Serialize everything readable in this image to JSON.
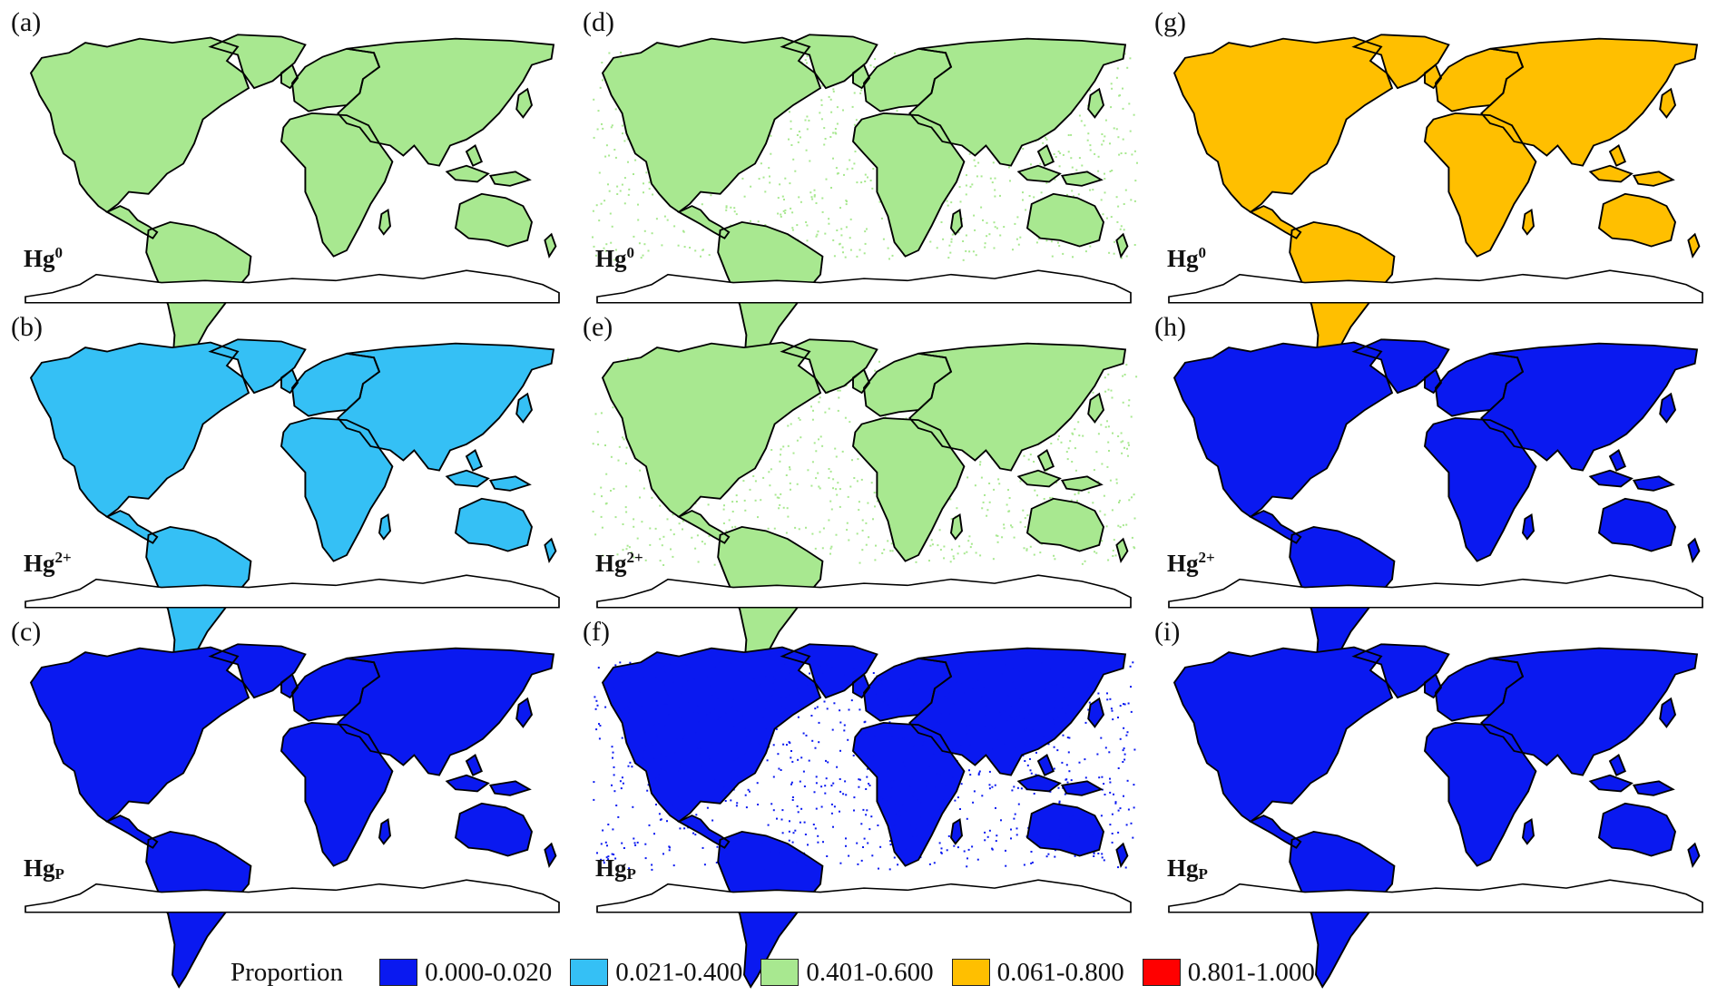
{
  "panels": [
    {
      "label": "(a)",
      "species": "Hg",
      "sup": "0",
      "land": "#a8e890",
      "patches": [
        {
          "region": "north-america",
          "color": "#ff0000"
        },
        {
          "region": "africa",
          "color": "#ffbf00"
        },
        {
          "region": "australia",
          "color": "#ffbf00"
        },
        {
          "region": "south-america",
          "color": "#a8e890"
        },
        {
          "region": "scattered",
          "color": "#ff0000"
        }
      ]
    },
    {
      "label": "(b)",
      "species": "Hg",
      "sup": "2+",
      "land": "#35c0f5",
      "patches": [
        {
          "region": "north-america",
          "color": "#0a19f0"
        },
        {
          "region": "eurasia-north",
          "color": "#a8e890"
        },
        {
          "region": "scattered",
          "color": "#0a19f0"
        }
      ]
    },
    {
      "label": "(c)",
      "species": "Hg",
      "sup": "P",
      "land": "#0a19f0",
      "patches": []
    },
    {
      "label": "(d)",
      "species": "Hg",
      "sup": "0",
      "land": "#a8e890",
      "patches": [
        {
          "region": "ocean-dots",
          "color": "#a8e890"
        },
        {
          "region": "south-america",
          "color": "#35c0f5"
        },
        {
          "region": "scattered",
          "color": "#35c0f5"
        },
        {
          "region": "central-africa",
          "color": "#ff0000"
        }
      ]
    },
    {
      "label": "(e)",
      "species": "Hg",
      "sup": "2+",
      "land": "#a8e890",
      "patches": [
        {
          "region": "ocean-dots",
          "color": "#a8e890"
        },
        {
          "region": "australia",
          "color": "#35c0f5"
        },
        {
          "region": "scattered",
          "color": "#35c0f5"
        },
        {
          "region": "central-africa",
          "color": "#0a19f0"
        }
      ]
    },
    {
      "label": "(f)",
      "species": "Hg",
      "sup": "P",
      "land": "#0a19f0",
      "patches": [
        {
          "region": "ocean-dots",
          "color": "#0a19f0"
        }
      ]
    },
    {
      "label": "(g)",
      "species": "Hg",
      "sup": "0",
      "land": "#ffbf00",
      "patches": [
        {
          "region": "south-america",
          "color": "#ff0000"
        },
        {
          "region": "scattered",
          "color": "#ff0000"
        },
        {
          "region": "australia",
          "color": "#fff6d8"
        }
      ]
    },
    {
      "label": "(h)",
      "species": "Hg",
      "sup": "2+",
      "land": "#0a19f0",
      "patches": [
        {
          "region": "south-asia",
          "color": "#35c0f5"
        },
        {
          "region": "scattered",
          "color": "#ffffff"
        }
      ]
    },
    {
      "label": "(i)",
      "species": "Hg",
      "sup": "P",
      "land": "#0a19f0",
      "patches": [
        {
          "region": "scattered",
          "color": "#ffffff"
        },
        {
          "region": "australia",
          "color": "#ffffff"
        }
      ]
    }
  ],
  "legend": {
    "title": "Proportion",
    "items": [
      {
        "label": "0.000-0.020",
        "color": "#0a19f0"
      },
      {
        "label": "0.021-0.400",
        "color": "#35c0f5"
      },
      {
        "label": "0.401-0.600",
        "color": "#a8e890"
      },
      {
        "label": "0.061-0.800",
        "color": "#ffbf00"
      },
      {
        "label": "0.801-1.000",
        "color": "#ff0000"
      }
    ]
  }
}
